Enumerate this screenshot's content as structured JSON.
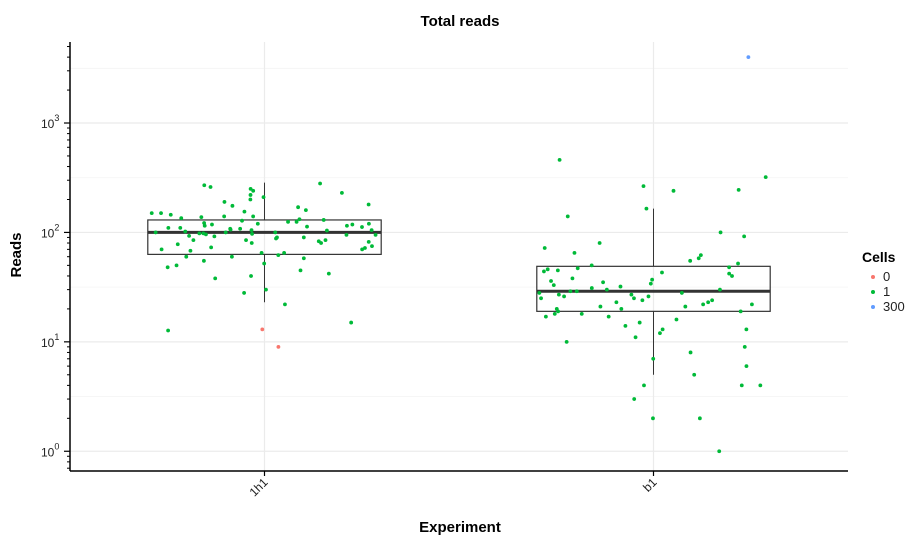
{
  "chart_data": {
    "type": "box",
    "title": "Total reads",
    "xlabel": "Experiment",
    "ylabel": "Reads",
    "y_scale": "log10",
    "ylim": [
      0.66,
      5500
    ],
    "y_ticks": [
      {
        "value": 1,
        "base": "10",
        "exp": "0"
      },
      {
        "value": 10,
        "base": "10",
        "exp": "1"
      },
      {
        "value": 100,
        "base": "10",
        "exp": "2"
      },
      {
        "value": 1000,
        "base": "10",
        "exp": "3"
      }
    ],
    "categories": [
      "1h1",
      "b1"
    ],
    "grid": true,
    "legend": {
      "title": "Cells",
      "position": "right",
      "entries": [
        {
          "label": "0",
          "color": "#F8766D"
        },
        {
          "label": "1",
          "color": "#00BA38"
        },
        {
          "label": "300",
          "color": "#619CFF"
        }
      ]
    },
    "boxes": [
      {
        "category": "1h1",
        "min": 23,
        "q1": 63,
        "median": 100,
        "q3": 130,
        "max": 285
      },
      {
        "category": "b1",
        "min": 5,
        "q1": 19,
        "median": 29,
        "q3": 49,
        "max": 165
      }
    ],
    "points": {
      "1h1": {
        "1": [
          50,
          96,
          105,
          30,
          12.7,
          15,
          22,
          28,
          38,
          42,
          45,
          48,
          52,
          55,
          58,
          60,
          62,
          65,
          68,
          70,
          72,
          75,
          78,
          80,
          82,
          85,
          85,
          88,
          90,
          92,
          93,
          95,
          97,
          98,
          100,
          100,
          102,
          104,
          106,
          108,
          110,
          112,
          115,
          118,
          120,
          122,
          125,
          128,
          130,
          132,
          135,
          138,
          140,
          145,
          150,
          155,
          160,
          170,
          180,
          190,
          200,
          210,
          220,
          230,
          240,
          250,
          260,
          270,
          280,
          110,
          118,
          85,
          95,
          105,
          70,
          115,
          80,
          125,
          90,
          100,
          140,
          60,
          98,
          108,
          113,
          83,
          73,
          120,
          150,
          175,
          65,
          40
        ],
        "0": [
          13,
          9
        ]
      },
      "b1": {
        "1": [
          460,
          320,
          265,
          245,
          240,
          165,
          140,
          100,
          92,
          80,
          72,
          65,
          62,
          58,
          55,
          52,
          50,
          48,
          47,
          46,
          45,
          44,
          43,
          42,
          40,
          38,
          37,
          36,
          35,
          34,
          33,
          32,
          31,
          30,
          30,
          29,
          29,
          28,
          28,
          27,
          27,
          26,
          26,
          25,
          25,
          24,
          24,
          23,
          23,
          22,
          22,
          21,
          21,
          20,
          20,
          19,
          19,
          18,
          18,
          17,
          17,
          16,
          15,
          14,
          13,
          13,
          12,
          11,
          10,
          9,
          8,
          7,
          6,
          5,
          4,
          4,
          4,
          3,
          2,
          2,
          1
        ],
        "300": [
          4000
        ]
      }
    }
  }
}
